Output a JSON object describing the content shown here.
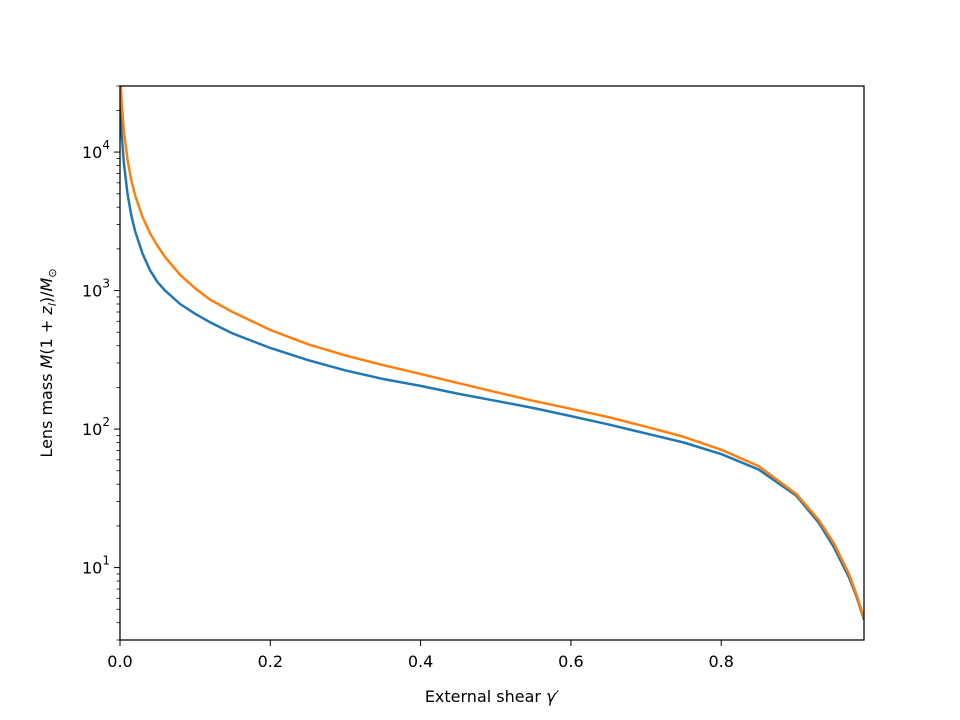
{
  "chart_data": {
    "type": "line",
    "xlabel": "External shear γ′",
    "ylabel": "Lens mass M(1 + z_l)/M_⊙",
    "xlim": [
      0.0,
      0.99
    ],
    "ylim": [
      3,
      30000
    ],
    "yscale": "log",
    "grid": false,
    "x_ticks": [
      {
        "value": 0.0,
        "label": "0.0"
      },
      {
        "value": 0.2,
        "label": "0.2"
      },
      {
        "value": 0.4,
        "label": "0.4"
      },
      {
        "value": 0.6,
        "label": "0.6"
      },
      {
        "value": 0.8,
        "label": "0.8"
      }
    ],
    "y_ticks": [
      {
        "value": 10,
        "base": "10",
        "exp": "1"
      },
      {
        "value": 100,
        "base": "10",
        "exp": "2"
      },
      {
        "value": 1000,
        "base": "10",
        "exp": "3"
      },
      {
        "value": 10000,
        "base": "10",
        "exp": "4"
      }
    ],
    "series": [
      {
        "color": "#1f77b4",
        "x": [
          0.0002,
          0.001,
          0.002,
          0.005,
          0.01,
          0.015,
          0.02,
          0.03,
          0.04,
          0.05,
          0.06,
          0.08,
          0.1,
          0.12,
          0.15,
          0.2,
          0.25,
          0.3,
          0.35,
          0.4,
          0.45,
          0.5,
          0.55,
          0.6,
          0.65,
          0.7,
          0.75,
          0.8,
          0.85,
          0.9,
          0.93,
          0.95,
          0.97,
          0.98,
          0.99
        ],
        "y": [
          25000,
          19000,
          14000,
          8500,
          5000,
          3500,
          2700,
          1850,
          1400,
          1150,
          1000,
          800,
          680,
          590,
          490,
          385,
          315,
          265,
          230,
          205,
          180,
          160,
          142,
          124,
          108,
          93,
          80,
          66,
          51,
          33,
          21,
          14,
          8.5,
          6.2,
          4.2
        ]
      },
      {
        "color": "#ff7f0e",
        "x": [
          0.0012,
          0.002,
          0.005,
          0.01,
          0.015,
          0.02,
          0.03,
          0.04,
          0.05,
          0.06,
          0.08,
          0.1,
          0.12,
          0.15,
          0.2,
          0.25,
          0.3,
          0.35,
          0.4,
          0.45,
          0.5,
          0.55,
          0.6,
          0.65,
          0.7,
          0.75,
          0.8,
          0.85,
          0.9,
          0.93,
          0.95,
          0.97,
          0.98,
          0.99
        ],
        "y": [
          30000,
          24000,
          14500,
          8800,
          6300,
          4900,
          3400,
          2600,
          2100,
          1750,
          1300,
          1040,
          860,
          700,
          520,
          410,
          340,
          290,
          250,
          215,
          185,
          160,
          140,
          122,
          104,
          88,
          71,
          54,
          34,
          22,
          15,
          9,
          6.4,
          4.3
        ]
      }
    ]
  }
}
